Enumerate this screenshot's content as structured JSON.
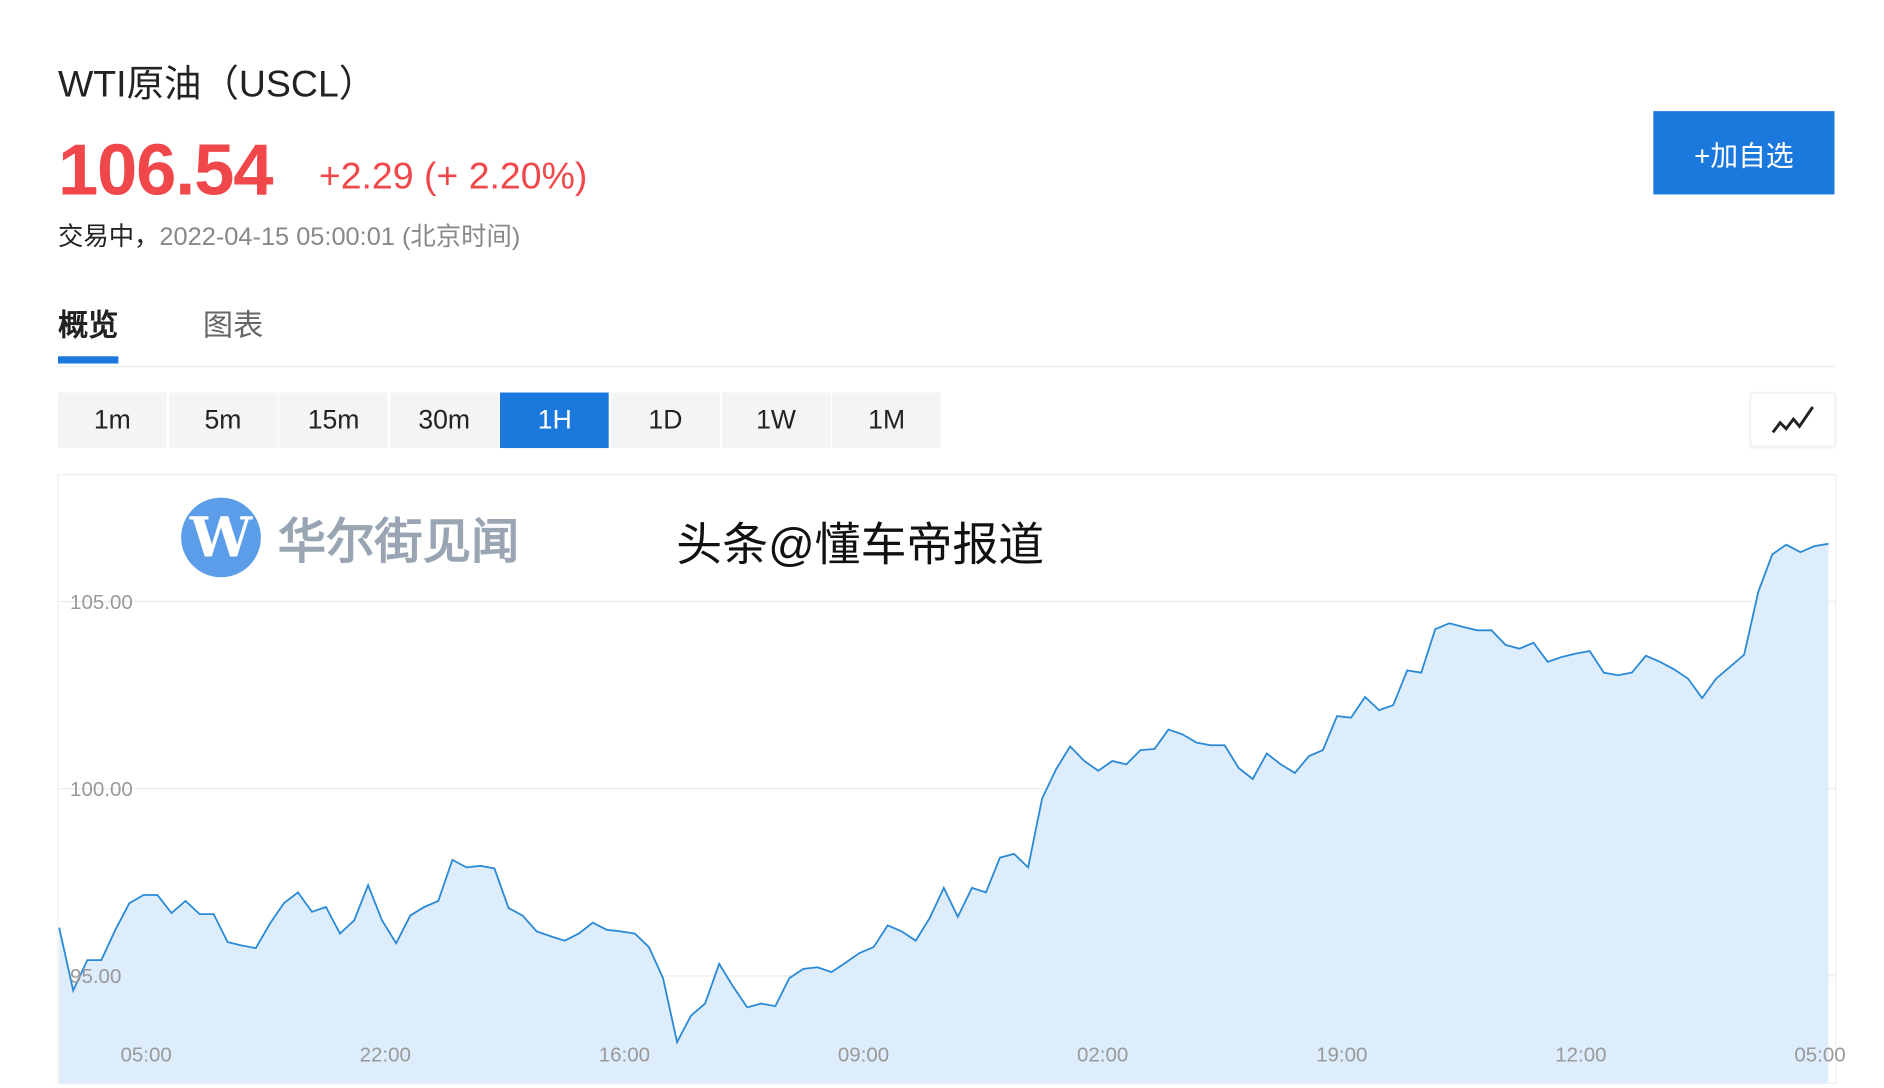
{
  "header": {
    "title": "WTI原油（USCL）",
    "price": "106.54",
    "change": "+2.29 (+ 2.20%)",
    "status": "交易中，",
    "timestamp": "2022-04-15 05:00:01 (北京时间)",
    "add_button": "+加自选"
  },
  "tabs": [
    {
      "label": "概览",
      "active": true
    },
    {
      "label": "图表",
      "active": false
    }
  ],
  "periods": [
    {
      "label": "1m"
    },
    {
      "label": "5m"
    },
    {
      "label": "15m"
    },
    {
      "label": "30m"
    },
    {
      "label": "1H",
      "active": true
    },
    {
      "label": "1D"
    },
    {
      "label": "1W"
    },
    {
      "label": "1M"
    }
  ],
  "chart_type_icon": "line-chart-icon",
  "colors": {
    "up": "#f0474b",
    "accent": "#1b79dd",
    "line": "#2b8ad6",
    "area": "#deedfb"
  },
  "watermarks": {
    "logo": "W",
    "logo_text": "华尔街见闻",
    "overlay": "头条@懂车帝报道"
  },
  "chart_data": {
    "type": "area",
    "title": "",
    "xlabel": "",
    "ylabel": "",
    "ylim": [
      92.13,
      108.39
    ],
    "grid": true,
    "yticks": [
      {
        "value": 105,
        "label": "105.00"
      },
      {
        "value": 100,
        "label": "100.00"
      },
      {
        "value": 95,
        "label": "95.00"
      }
    ],
    "xticks": [
      "05:00",
      "22:00",
      "16:00",
      "09:00",
      "02:00",
      "19:00",
      "12:00",
      "05:00"
    ],
    "values": [
      96.29,
      94.61,
      95.42,
      95.42,
      96.23,
      96.94,
      97.16,
      97.16,
      96.68,
      97.0,
      96.65,
      96.65,
      95.9,
      95.81,
      95.74,
      96.39,
      96.94,
      97.23,
      96.71,
      96.84,
      96.13,
      96.48,
      97.42,
      96.48,
      95.87,
      96.61,
      96.84,
      97.0,
      98.1,
      97.9,
      97.94,
      97.87,
      96.81,
      96.61,
      96.19,
      96.06,
      95.94,
      96.13,
      96.42,
      96.23,
      96.19,
      96.13,
      95.77,
      94.94,
      93.23,
      93.94,
      94.26,
      95.32,
      94.71,
      94.16,
      94.26,
      94.19,
      94.94,
      95.19,
      95.23,
      95.1,
      95.35,
      95.61,
      95.77,
      96.35,
      96.19,
      95.94,
      96.55,
      97.35,
      96.58,
      97.35,
      97.23,
      98.16,
      98.26,
      97.9,
      99.74,
      100.52,
      101.13,
      100.74,
      100.48,
      100.74,
      100.65,
      101.03,
      101.06,
      101.58,
      101.45,
      101.23,
      101.16,
      101.16,
      100.55,
      100.26,
      100.94,
      100.65,
      100.42,
      100.87,
      101.03,
      101.94,
      101.9,
      102.45,
      102.1,
      102.23,
      103.16,
      103.1,
      104.26,
      104.42,
      104.32,
      104.23,
      104.23,
      103.84,
      103.74,
      103.9,
      103.39,
      103.52,
      103.61,
      103.68,
      103.1,
      103.03,
      103.1,
      103.55,
      103.39,
      103.19,
      102.94,
      102.42,
      102.94,
      103.26,
      103.58,
      105.26,
      106.26,
      106.52,
      106.32,
      106.48,
      106.54
    ]
  }
}
